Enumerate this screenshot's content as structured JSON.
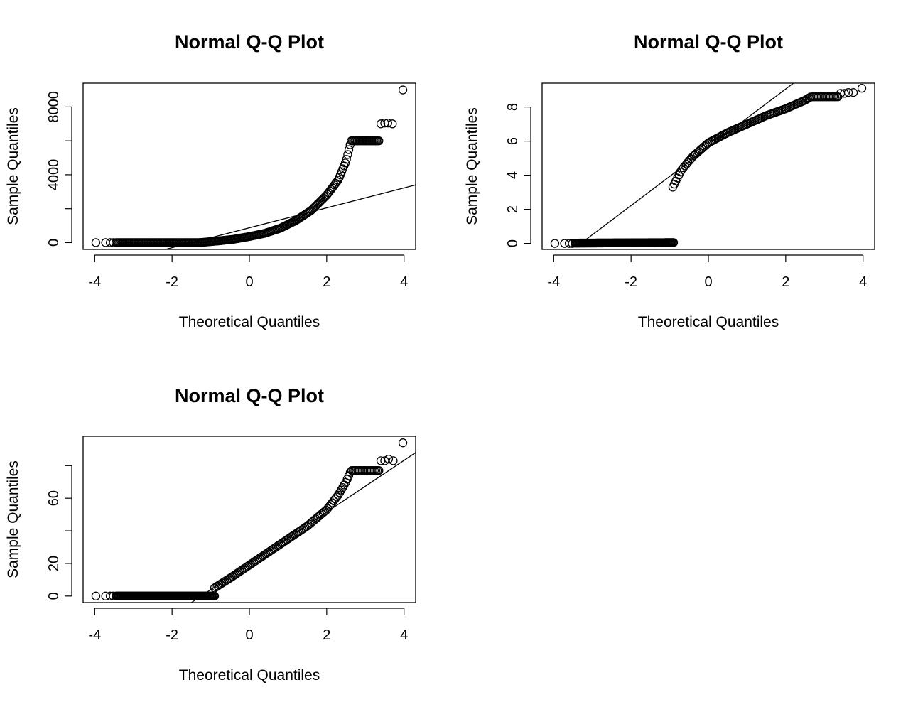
{
  "chart_data": [
    {
      "type": "scatter",
      "title": "Normal Q-Q Plot",
      "xlabel": "Theoretical Quantiles",
      "ylabel": "Sample Quantiles",
      "xlim": [
        -4.3,
        4.3
      ],
      "ylim": [
        -400,
        9400
      ],
      "xticks": [
        {
          "v": -4,
          "label": "-4"
        },
        {
          "v": -2,
          "label": "-2"
        },
        {
          "v": 0,
          "label": "0"
        },
        {
          "v": 2,
          "label": "2"
        },
        {
          "v": 4,
          "label": "4"
        }
      ],
      "yticks": [
        {
          "v": 0,
          "label": "0"
        },
        {
          "v": 2000,
          "label": ""
        },
        {
          "v": 4000,
          "label": "4000"
        },
        {
          "v": 6000,
          "label": ""
        },
        {
          "v": 8000,
          "label": "8000"
        }
      ],
      "grid": false,
      "qq_line": [
        [
          -4.3,
          -1650
        ],
        [
          4.3,
          3400
        ]
      ],
      "sample_curve": [
        [
          -3.45,
          0
        ],
        [
          -1.3,
          0
        ],
        [
          -0.8,
          100
        ],
        [
          -0.4,
          200
        ],
        [
          0,
          360
        ],
        [
          0.4,
          550
        ],
        [
          0.8,
          850
        ],
        [
          1.2,
          1300
        ],
        [
          1.6,
          1900
        ],
        [
          2.0,
          2800
        ],
        [
          2.3,
          3700
        ],
        [
          2.5,
          4800
        ],
        [
          2.63,
          6000
        ],
        [
          3.35,
          6000
        ]
      ],
      "sample_n": 220,
      "outliers": [
        [
          -3.97,
          0
        ],
        [
          -3.72,
          0
        ],
        [
          -3.6,
          0
        ],
        [
          -3.52,
          0
        ],
        [
          3.4,
          7000
        ],
        [
          3.5,
          7050
        ],
        [
          3.58,
          7050
        ],
        [
          3.7,
          7000
        ],
        [
          3.97,
          9000
        ]
      ]
    },
    {
      "type": "scatter",
      "title": "Normal Q-Q Plot",
      "xlabel": "Theoretical Quantiles",
      "ylabel": "Sample Quantiles",
      "xlim": [
        -4.3,
        4.3
      ],
      "ylim": [
        -0.35,
        9.4
      ],
      "xticks": [
        {
          "v": -4,
          "label": "-4"
        },
        {
          "v": -2,
          "label": "-2"
        },
        {
          "v": 0,
          "label": "0"
        },
        {
          "v": 2,
          "label": "2"
        },
        {
          "v": 4,
          "label": "4"
        }
      ],
      "yticks": [
        {
          "v": 0,
          "label": "0"
        },
        {
          "v": 2,
          "label": "2"
        },
        {
          "v": 4,
          "label": "4"
        },
        {
          "v": 6,
          "label": "6"
        },
        {
          "v": 8,
          "label": "8"
        }
      ],
      "grid": false,
      "qq_line": [
        [
          -3.3,
          0
        ],
        [
          2.2,
          9.4
        ]
      ],
      "sample_segments": [
        [
          [
            -3.45,
            0.02
          ],
          [
            -0.9,
            0.05
          ]
        ],
        [
          [
            -0.92,
            3.3
          ],
          [
            -0.7,
            4.3
          ],
          [
            -0.4,
            5.1
          ],
          [
            0,
            5.9
          ],
          [
            0.5,
            6.5
          ],
          [
            1.0,
            7.0
          ],
          [
            1.5,
            7.5
          ],
          [
            2.0,
            7.9
          ],
          [
            2.5,
            8.4
          ],
          [
            2.65,
            8.6
          ],
          [
            3.35,
            8.6
          ]
        ]
      ],
      "sample_n": 220,
      "outliers": [
        [
          -3.97,
          0
        ],
        [
          -3.72,
          0
        ],
        [
          -3.6,
          0
        ],
        [
          -3.52,
          0
        ],
        [
          3.42,
          8.8
        ],
        [
          3.52,
          8.8
        ],
        [
          3.62,
          8.85
        ],
        [
          3.75,
          8.85
        ],
        [
          3.97,
          9.1
        ]
      ]
    },
    {
      "type": "scatter",
      "title": "Normal Q-Q Plot",
      "xlabel": "Theoretical Quantiles",
      "ylabel": "Sample Quantiles",
      "xlim": [
        -4.3,
        4.3
      ],
      "ylim": [
        -4,
        98
      ],
      "xticks": [
        {
          "v": -4,
          "label": "-4"
        },
        {
          "v": -2,
          "label": "-2"
        },
        {
          "v": 0,
          "label": "0"
        },
        {
          "v": 2,
          "label": "2"
        },
        {
          "v": 4,
          "label": "4"
        }
      ],
      "yticks": [
        {
          "v": 0,
          "label": "0"
        },
        {
          "v": 20,
          "label": "20"
        },
        {
          "v": 40,
          "label": ""
        },
        {
          "v": 60,
          "label": "60"
        },
        {
          "v": 80,
          "label": ""
        }
      ],
      "grid": false,
      "qq_line": [
        [
          -1.5,
          -4
        ],
        [
          4.3,
          88
        ]
      ],
      "sample_segments": [
        [
          [
            -3.45,
            0
          ],
          [
            -0.9,
            0
          ]
        ],
        [
          [
            -0.9,
            5
          ],
          [
            -0.5,
            11
          ],
          [
            0,
            19
          ],
          [
            0.5,
            27
          ],
          [
            1.0,
            35
          ],
          [
            1.5,
            43
          ],
          [
            2.0,
            53
          ],
          [
            2.3,
            62
          ],
          [
            2.5,
            70
          ],
          [
            2.63,
            77
          ],
          [
            3.35,
            77
          ]
        ]
      ],
      "sample_n": 220,
      "outliers": [
        [
          -3.97,
          0
        ],
        [
          -3.72,
          0
        ],
        [
          -3.6,
          0
        ],
        [
          -3.52,
          0
        ],
        [
          3.4,
          83
        ],
        [
          3.5,
          83
        ],
        [
          3.6,
          84
        ],
        [
          3.72,
          83
        ],
        [
          3.97,
          94
        ]
      ]
    }
  ]
}
